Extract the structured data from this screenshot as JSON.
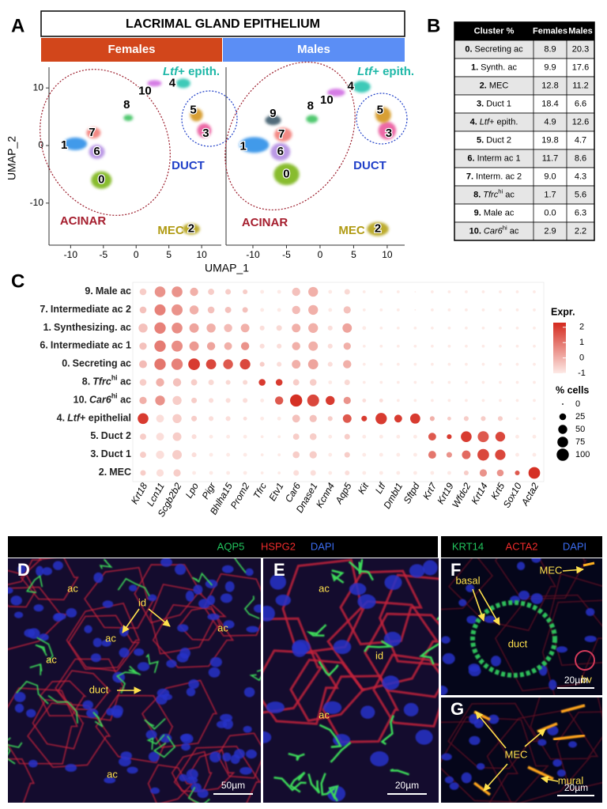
{
  "panel_labels": {
    "a": "A",
    "b": "B",
    "c": "C",
    "d": "D",
    "e": "E",
    "f": "F",
    "g": "G"
  },
  "header": {
    "title": "LACRIMAL GLAND EPITHELIUM",
    "groups": [
      "Females",
      "Males"
    ],
    "group_colors": [
      "#d2461b",
      "#5b8ef5"
    ]
  },
  "chart_data": [
    {
      "type": "scatter",
      "group": "Females",
      "x_label": "UMAP_1",
      "y_label": "UMAP_2",
      "xlim": [
        -13.3,
        13.0
      ],
      "ylim": [
        -17.3,
        13.6
      ],
      "xticks": [
        -10,
        -5,
        0,
        5,
        10
      ],
      "yticks": [
        -10,
        0,
        10
      ],
      "labels": [
        "0",
        "1",
        "2",
        "3",
        "4",
        "5",
        "6",
        "7",
        "8",
        "10"
      ],
      "x": [
        -5.3,
        -9.3,
        8.4,
        10.4,
        7.2,
        9.2,
        -6.0,
        -6.5,
        -1.2,
        2.8
      ],
      "y": [
        -6.0,
        0.3,
        -14.5,
        2.6,
        10.8,
        5.3,
        -1.1,
        2.2,
        4.8,
        10.8
      ],
      "colors": [
        "#7cb518",
        "#2f8fe8",
        "#b5a31a",
        "#ea5a9c",
        "#27c4b0",
        "#d4951f",
        "#b48ee2",
        "#f27d78",
        "#3fc261",
        "#d06ee2"
      ],
      "annotations": {
        "acinar": "ACINAR",
        "duct": "DUCT",
        "mec": "MEC",
        "epith": [
          {
            "text": "Ltf",
            "style": "italic"
          },
          {
            "text": "+ epith."
          }
        ]
      }
    },
    {
      "type": "scatter",
      "group": "Males",
      "xlim": [
        -14.0,
        12.6
      ],
      "ylim": [
        -17.3,
        13.6
      ],
      "xticks": [
        -10,
        -5,
        0,
        5,
        10
      ],
      "labels": [
        "0",
        "1",
        "2",
        "3",
        "4",
        "5",
        "6",
        "7",
        "8",
        "9",
        "10"
      ],
      "x": [
        -5.0,
        -9.8,
        8.6,
        10.0,
        6.2,
        9.4,
        -5.9,
        -5.5,
        -1.2,
        -7.0,
        2.4
      ],
      "y": [
        -5.0,
        0.1,
        -14.5,
        2.6,
        10.2,
        5.3,
        -1.1,
        1.9,
        4.6,
        4.4,
        9.2
      ],
      "colors": [
        "#7cb518",
        "#2f8fe8",
        "#b5a31a",
        "#ea5a9c",
        "#27c4b0",
        "#d4951f",
        "#b48ee2",
        "#f27d78",
        "#3fc261",
        "#3d5b6b",
        "#d06ee2"
      ],
      "annotations": {
        "acinar": "ACINAR",
        "duct": "DUCT",
        "mec": "MEC",
        "epith": [
          {
            "text": "Ltf",
            "style": "italic"
          },
          {
            "text": "+ epith."
          }
        ]
      }
    },
    {
      "type": "dotplot",
      "rows": [
        {
          "id": "9.",
          "name": [
            {
              "text": "Male ac"
            }
          ]
        },
        {
          "id": "7.",
          "name": [
            {
              "text": "Intermediate ac 2"
            }
          ]
        },
        {
          "id": "1.",
          "name": [
            {
              "text": "Synthesizing. ac"
            }
          ]
        },
        {
          "id": "6.",
          "name": [
            {
              "text": "Intermediate ac 1"
            }
          ]
        },
        {
          "id": "0.",
          "name": [
            {
              "text": "Secreting ac"
            }
          ]
        },
        {
          "id": "8.",
          "name": [
            {
              "text": "Tfrc",
              "style": "italic"
            },
            {
              "text": "hi",
              "style": "sup"
            },
            {
              "text": " ac"
            }
          ]
        },
        {
          "id": "10.",
          "name": [
            {
              "text": "Car6",
              "style": "italic"
            },
            {
              "text": "hi",
              "style": "sup"
            },
            {
              "text": " ac"
            }
          ]
        },
        {
          "id": "4.",
          "name": [
            {
              "text": "Ltf",
              "style": "italic"
            },
            {
              "text": "+ epithelial"
            }
          ]
        },
        {
          "id": "5.",
          "name": [
            {
              "text": "Duct 2"
            }
          ]
        },
        {
          "id": "3.",
          "name": [
            {
              "text": "Duct 1"
            }
          ]
        },
        {
          "id": "2.",
          "name": [
            {
              "text": "MEC"
            }
          ]
        }
      ],
      "columns": [
        "Krt18",
        "Lcn11",
        "Scgb2b2",
        "Lpo",
        "Pigr",
        "Bhlha15",
        "Prom2",
        "Tfrc",
        "Etv1",
        "Car6",
        "Dnase1",
        "Kcnn4",
        "Aqp5",
        "Kit",
        "Ltf",
        "Dmbt1",
        "Sftpd",
        "Krt7",
        "Krt19",
        "Wfdc2",
        "Krt14",
        "Krt5",
        "Sox10",
        "Acta2"
      ],
      "pct": [
        [
          25,
          75,
          75,
          40,
          20,
          15,
          10,
          5,
          5,
          40,
          60,
          5,
          15,
          2,
          2,
          2,
          0,
          2,
          2,
          2,
          2,
          2,
          2,
          2
        ],
        [
          25,
          80,
          80,
          50,
          25,
          20,
          15,
          5,
          5,
          40,
          60,
          5,
          30,
          2,
          2,
          2,
          0,
          2,
          2,
          2,
          2,
          2,
          2,
          2
        ],
        [
          50,
          85,
          75,
          55,
          50,
          40,
          45,
          10,
          15,
          45,
          60,
          10,
          55,
          5,
          2,
          2,
          2,
          2,
          2,
          2,
          2,
          2,
          2,
          2
        ],
        [
          30,
          85,
          80,
          55,
          40,
          35,
          40,
          10,
          10,
          40,
          55,
          10,
          30,
          2,
          2,
          2,
          2,
          2,
          2,
          2,
          2,
          2,
          2,
          2
        ],
        [
          35,
          85,
          85,
          90,
          65,
          60,
          70,
          10,
          10,
          45,
          65,
          10,
          40,
          2,
          2,
          2,
          2,
          2,
          2,
          2,
          2,
          2,
          2,
          2
        ],
        [
          25,
          40,
          40,
          20,
          15,
          10,
          10,
          25,
          25,
          20,
          25,
          5,
          15,
          2,
          2,
          2,
          2,
          2,
          2,
          2,
          2,
          2,
          2,
          2
        ],
        [
          30,
          60,
          50,
          15,
          10,
          10,
          10,
          5,
          40,
          100,
          95,
          50,
          30,
          5,
          5,
          2,
          2,
          2,
          2,
          2,
          2,
          2,
          2,
          2
        ],
        [
          75,
          35,
          50,
          15,
          10,
          10,
          5,
          5,
          5,
          35,
          30,
          10,
          45,
          15,
          85,
          35,
          65,
          10,
          5,
          10,
          10,
          10,
          2,
          2
        ],
        [
          20,
          35,
          45,
          10,
          5,
          5,
          5,
          2,
          2,
          20,
          25,
          5,
          15,
          5,
          5,
          5,
          5,
          35,
          10,
          75,
          80,
          60,
          5,
          5
        ],
        [
          20,
          40,
          55,
          10,
          5,
          5,
          5,
          2,
          2,
          25,
          30,
          5,
          15,
          5,
          5,
          5,
          5,
          35,
          15,
          45,
          90,
          70,
          5,
          5
        ],
        [
          15,
          30,
          30,
          5,
          5,
          5,
          5,
          2,
          2,
          15,
          15,
          5,
          10,
          5,
          5,
          5,
          5,
          5,
          5,
          10,
          30,
          25,
          10,
          90
        ]
      ],
      "expr": [
        [
          -0.5,
          0.5,
          0.5,
          0,
          -0.5,
          -0.5,
          -0.5,
          -1,
          -1,
          -0.3,
          0,
          -1,
          -0.7,
          -1,
          -1,
          -1,
          -1,
          -1,
          -1,
          -1,
          -1,
          -1,
          -1,
          -1
        ],
        [
          -0.3,
          0.8,
          0.5,
          0,
          -0.3,
          -0.3,
          -0.3,
          -1,
          -1,
          -0.2,
          0,
          -1,
          -0.3,
          -1,
          -1,
          -1,
          -1,
          -1,
          -1,
          -1,
          -1,
          -1,
          -1,
          -1
        ],
        [
          -0.3,
          0.8,
          0.6,
          0.2,
          0,
          -0.2,
          0,
          -0.8,
          -0.7,
          0,
          0,
          -0.8,
          0.2,
          -1,
          -1,
          -1,
          -1,
          -1,
          -1,
          -1,
          -1,
          -1,
          -1,
          -1
        ],
        [
          -0.3,
          0.9,
          0.6,
          0.4,
          0.2,
          0,
          0.5,
          -0.8,
          -0.8,
          0,
          0,
          -0.8,
          0,
          -1,
          -1,
          -1,
          -1,
          -1,
          -1,
          -1,
          -1,
          -1,
          -1,
          -1
        ],
        [
          -0.2,
          1,
          0.8,
          2,
          1.8,
          1.5,
          1.8,
          -0.5,
          -0.8,
          0,
          0.2,
          -0.8,
          0,
          -1,
          -1,
          -1,
          -1,
          -1,
          -1,
          -1,
          -1,
          -1,
          -1,
          -1
        ],
        [
          -0.5,
          0,
          -0.3,
          -0.5,
          -0.7,
          -0.7,
          -0.7,
          2,
          2,
          -0.5,
          -0.5,
          -1,
          -0.7,
          -1,
          -1,
          -1,
          -1,
          -1,
          -1,
          -1,
          -1,
          -1,
          -1,
          -1
        ],
        [
          0,
          0.5,
          -0.5,
          -0.5,
          -0.8,
          -0.8,
          -0.8,
          -1,
          1.5,
          2.2,
          1.8,
          2,
          0.5,
          -0.8,
          -0.8,
          -1,
          -1,
          -1,
          -1,
          -1,
          -1,
          -1,
          -1,
          -1
        ],
        [
          2,
          -0.8,
          -0.5,
          -0.5,
          -0.8,
          -0.8,
          -0.8,
          -1,
          -1,
          -0.3,
          -0.3,
          -0.5,
          1.5,
          2,
          2,
          2,
          2,
          0,
          -0.5,
          -0.5,
          -0.5,
          -0.5,
          -1,
          -1
        ],
        [
          -0.5,
          -0.8,
          -0.5,
          -0.8,
          -1,
          -1,
          -1,
          -1,
          -1,
          -0.5,
          -0.5,
          -1,
          -0.5,
          -1,
          -1,
          -1,
          -1,
          1.5,
          2,
          2,
          1.5,
          1.8,
          -1,
          -1
        ],
        [
          -0.5,
          -0.8,
          -0.5,
          -0.8,
          -1,
          -1,
          -1,
          -1,
          -1,
          -0.5,
          -0.5,
          -1,
          -0.5,
          -1,
          -1,
          -1,
          -1,
          1,
          0.5,
          1.2,
          1.8,
          1.8,
          -1,
          -1
        ],
        [
          -0.5,
          -0.8,
          -0.5,
          -1,
          -1,
          -1,
          -1,
          -1,
          -1,
          -0.8,
          -0.8,
          -1,
          -0.8,
          -1,
          -1,
          -1,
          -1,
          -1,
          -1,
          -0.5,
          0.5,
          0.5,
          1.5,
          2.2
        ]
      ],
      "color_scale": {
        "title": "Expr.",
        "lim": [
          -1,
          2.3
        ],
        "ticks": [
          2,
          1,
          0,
          -1
        ],
        "low": "#fdeae6",
        "high": "#d42a1e"
      },
      "size_scale": {
        "title": "% cells",
        "ticks": [
          0,
          25,
          50,
          75,
          100
        ]
      }
    }
  ],
  "table": {
    "header": [
      "Cluster %",
      "Females",
      "Males"
    ],
    "rows": [
      {
        "id": "0.",
        "name": [
          {
            "text": "Secreting ac"
          }
        ],
        "females": "8.9",
        "males": "20.3"
      },
      {
        "id": "1.",
        "name": [
          {
            "text": "Synth. ac"
          }
        ],
        "females": "9.9",
        "males": "17.6"
      },
      {
        "id": "2.",
        "name": [
          {
            "text": "MEC"
          }
        ],
        "females": "12.8",
        "males": "11.2"
      },
      {
        "id": "3.",
        "name": [
          {
            "text": "Duct 1"
          }
        ],
        "females": "18.4",
        "males": "6.6"
      },
      {
        "id": "4.",
        "name": [
          {
            "text": "Ltf",
            "style": "italic"
          },
          {
            "text": "+ epith."
          }
        ],
        "females": "4.9",
        "males": "12.6"
      },
      {
        "id": "5.",
        "name": [
          {
            "text": "Duct 2"
          }
        ],
        "females": "19.8",
        "males": "4.7"
      },
      {
        "id": "6.",
        "name": [
          {
            "text": "Interm ac 1"
          }
        ],
        "females": "11.7",
        "males": "8.6"
      },
      {
        "id": "7.",
        "name": [
          {
            "text": "Interm. ac 2"
          }
        ],
        "females": "9.0",
        "males": "4.3"
      },
      {
        "id": "8.",
        "name": [
          {
            "text": "Tfrc",
            "style": "italic"
          },
          {
            "text": "hi",
            "style": "sup"
          },
          {
            "text": " ac"
          }
        ],
        "females": "1.7",
        "males": "5.6"
      },
      {
        "id": "9.",
        "name": [
          {
            "text": "Male ac"
          }
        ],
        "females": "0.0",
        "males": "6.3"
      },
      {
        "id": "10.",
        "name": [
          {
            "text": "Car6",
            "style": "italic"
          },
          {
            "text": "hi",
            "style": "sup"
          },
          {
            "text": " ac"
          }
        ],
        "females": "2.9",
        "males": "2.2"
      }
    ]
  },
  "micrographs": {
    "left_header": [
      {
        "text": "AQP5",
        "color": "#22c55e"
      },
      {
        "text": "HSPG2",
        "color": "#ef2b2b"
      },
      {
        "text": "DAPI",
        "color": "#3b6cf0"
      }
    ],
    "right_header": [
      {
        "text": "KRT14",
        "color": "#22c55e"
      },
      {
        "text": "ACTA2",
        "color": "#ef2b2b"
      },
      {
        "text": "DAPI",
        "color": "#3b6cf0"
      }
    ],
    "d": {
      "annotations": [
        "ac",
        "id",
        "ac",
        "ac",
        "ac",
        "duct",
        "ac"
      ],
      "scale": "50µm"
    },
    "e": {
      "annotations": [
        "ac",
        "id",
        "ac"
      ],
      "scale": "20µm"
    },
    "f": {
      "annotations": [
        "basal",
        "MEC",
        "duct",
        "bv"
      ],
      "scale": "20µm"
    },
    "g": {
      "annotations": [
        "MEC",
        "mural"
      ],
      "scale": "20µm"
    }
  }
}
